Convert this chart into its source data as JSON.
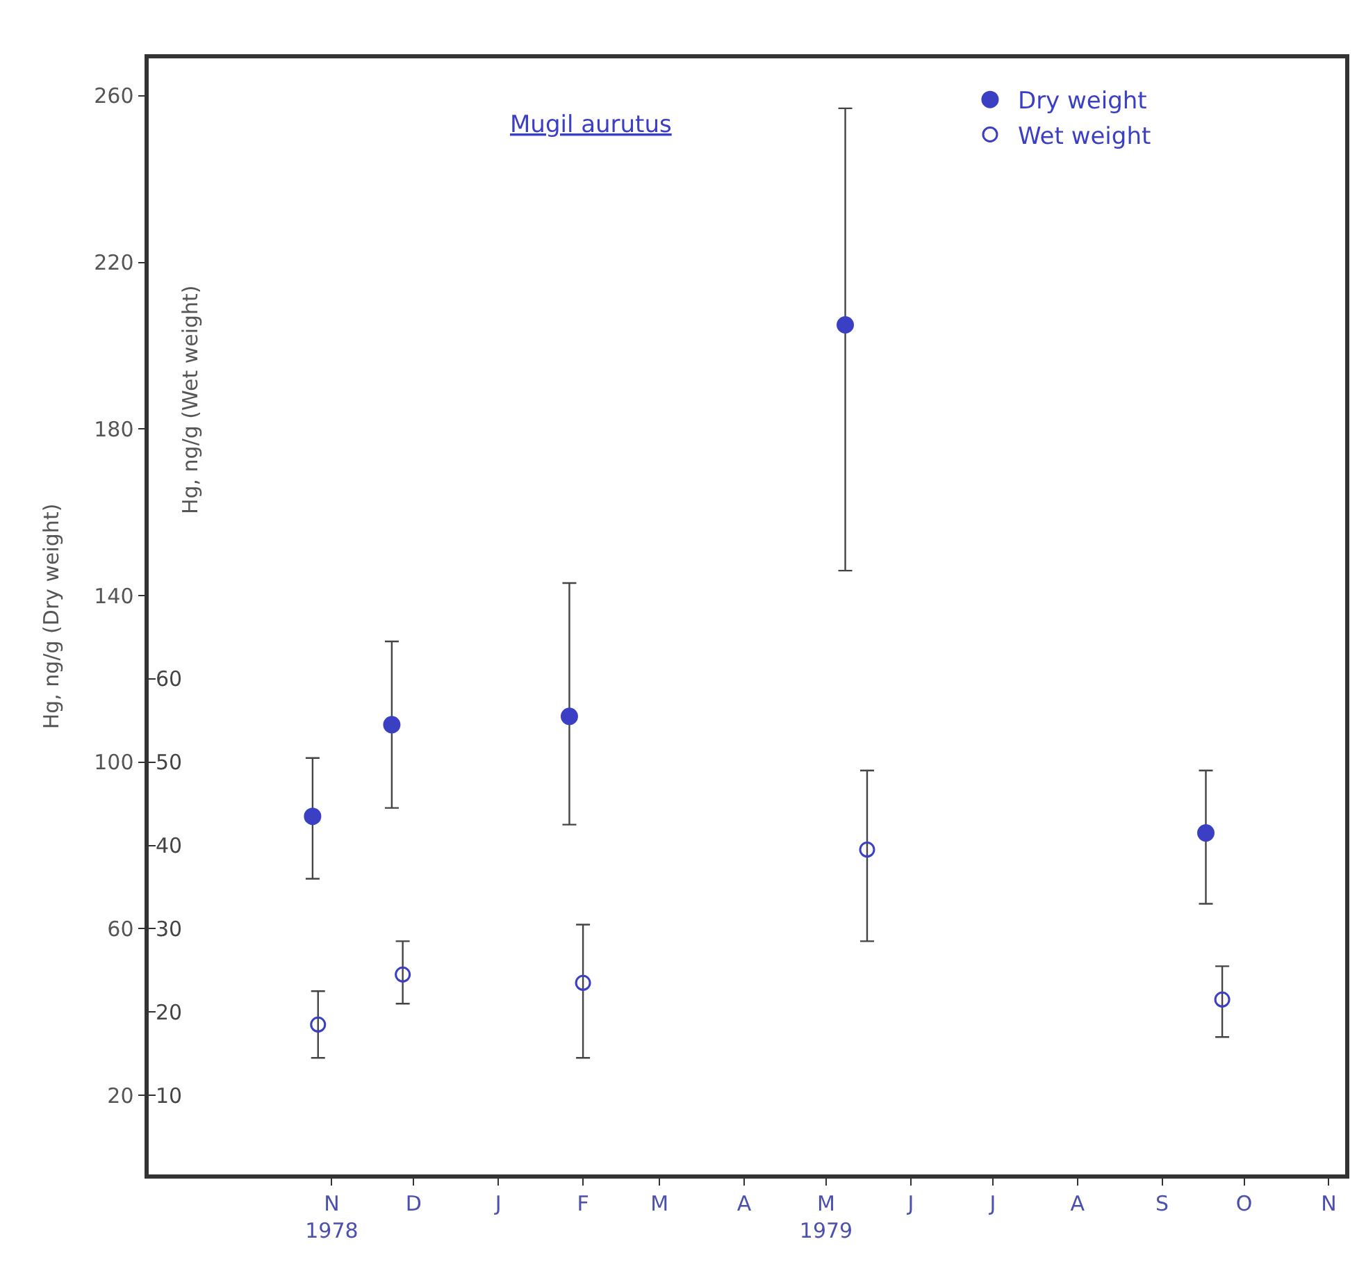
{
  "chart_data": {
    "type": "scatter",
    "title": "Mugil aurutus",
    "ylabel": "Hg, ng/g (Dry weight)",
    "y2label": "Hg, ng/g (Wet weight)",
    "series": [
      {
        "name": "Dry weight",
        "color": "#3b3fc4",
        "x": [
          "1978-10-25",
          "1978-11-23",
          "1979-01-27",
          "1979-05-08",
          "1979-09-17"
        ],
        "values": [
          87,
          109,
          111,
          205,
          83
        ],
        "errors": [
          [
            72,
            101
          ],
          [
            89,
            129
          ],
          [
            85,
            143
          ],
          [
            146,
            257
          ],
          [
            66,
            98
          ]
        ]
      },
      {
        "name": "Wet weight",
        "color": "#3b3fc4",
        "axis": "y2",
        "x": [
          "1978-10-27",
          "1978-11-27",
          "1979-02-01",
          "1979-05-16",
          "1979-09-23"
        ],
        "values": [
          18.5,
          24.5,
          23.5,
          39.5,
          21.5
        ],
        "errors": [
          [
            14.5,
            22.5
          ],
          [
            21,
            28.5
          ],
          [
            14.5,
            30.5
          ],
          [
            28.5,
            49
          ],
          [
            17,
            25.5
          ]
        ]
      }
    ],
    "xlim": [
      "1978-08-26",
      "1979-11-07"
    ],
    "xticks": [
      {
        "value": "1978-11-01",
        "label": "N\n1978"
      },
      {
        "value": "1978-12-01",
        "label": "D"
      },
      {
        "value": "1979-01-01",
        "label": "J"
      },
      {
        "value": "1979-02-01",
        "label": "F"
      },
      {
        "value": "1979-03-01",
        "label": "M"
      },
      {
        "value": "1979-04-01",
        "label": "A"
      },
      {
        "value": "1979-05-01",
        "label": "M\n1979"
      },
      {
        "value": "1979-06-01",
        "label": "J"
      },
      {
        "value": "1979-07-01",
        "label": "J"
      },
      {
        "value": "1979-08-01",
        "label": "A"
      },
      {
        "value": "1979-09-01",
        "label": "S"
      },
      {
        "value": "1979-10-01",
        "label": "O"
      },
      {
        "value": "1979-11-01",
        "label": "N"
      }
    ],
    "ylim": [
      1,
      269
    ],
    "yticks": [
      20,
      60,
      100,
      140,
      180,
      220,
      260
    ],
    "y2lim": [
      0.5,
      134.5
    ],
    "y2ticks": [
      10,
      20,
      30,
      40,
      50,
      60
    ],
    "marker": "circle",
    "legend": "top right"
  }
}
